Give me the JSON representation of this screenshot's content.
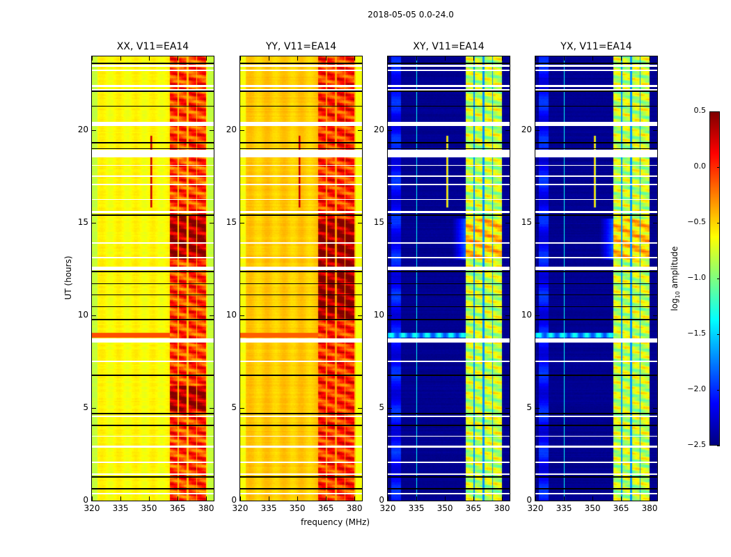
{
  "suptitle": "2018-05-05 0.0-24.0",
  "xlabel": "frequency (MHz)",
  "ylabel": "UT (hours)",
  "colorbar": {
    "label": "log10 amplitude",
    "label_main": "log",
    "label_sub": "10",
    "label_rest": " amplitude",
    "range": [
      -2.5,
      0.5
    ],
    "colormap": "jet",
    "ticks": [
      "0.5",
      "0.0",
      "−0.5",
      "−1.0",
      "−1.5",
      "−2.0",
      "−2.5"
    ],
    "tick_values": [
      0.5,
      0.0,
      -0.5,
      -1.0,
      -1.5,
      -2.0,
      -2.5
    ]
  },
  "chart_data": [
    {
      "type": "heatmap",
      "title": "XX, V11=EA14",
      "xlim": [
        320,
        384
      ],
      "ylim": [
        0,
        24
      ],
      "base": -0.62,
      "band": -0.05,
      "strong": 0.42,
      "strong_hours": [
        [
          13,
          15.4
        ],
        [
          4.8,
          6.2
        ]
      ],
      "dip": -0.45,
      "spike": 0.1,
      "row_anomaly": -0.1,
      "cross": false
    },
    {
      "type": "heatmap",
      "title": "YY, V11=EA14",
      "xlim": [
        320,
        384
      ],
      "ylim": [
        0,
        24
      ],
      "base": -0.47,
      "band": 0.0,
      "strong": 0.42,
      "strong_hours": [
        [
          9.8,
          15.2
        ]
      ],
      "dip": -0.35,
      "spike": 0.1,
      "row_anomaly": -0.15,
      "cross": false
    },
    {
      "type": "heatmap",
      "title": "XY, V11=EA14",
      "xlim": [
        320,
        384
      ],
      "ylim": [
        0,
        24
      ],
      "base": -2.45,
      "band": -0.8,
      "strong": 0.3,
      "strong_hours": [
        [
          13,
          15.2
        ]
      ],
      "dip": -1.7,
      "spike": -0.7,
      "row_anomaly": -1.6,
      "cross": true
    },
    {
      "type": "heatmap",
      "title": "YX, V11=EA14",
      "xlim": [
        320,
        384
      ],
      "ylim": [
        0,
        24
      ],
      "base": -2.45,
      "band": -0.8,
      "strong": 0.3,
      "strong_hours": [
        [
          13,
          15.2
        ]
      ],
      "dip": -1.7,
      "spike": -0.7,
      "row_anomaly": -1.6,
      "cross": true
    }
  ],
  "xticks": {
    "values": [
      320,
      335,
      350,
      365,
      380
    ],
    "labels": [
      "320",
      "335",
      "350",
      "365",
      "380"
    ]
  },
  "yticks": {
    "values": [
      0,
      5,
      10,
      15,
      20
    ],
    "labels": [
      "0",
      "5",
      "10",
      "15",
      "20"
    ]
  },
  "flags": {
    "white_hours": [
      [
        23.45,
        23.55
      ],
      [
        23.2,
        23.28
      ],
      [
        22.35,
        22.45
      ],
      [
        22.15,
        22.22
      ],
      [
        20.25,
        20.45
      ],
      [
        18.55,
        18.95
      ],
      [
        18.1,
        18.15
      ],
      [
        17.5,
        17.55
      ],
      [
        17.05,
        17.1
      ],
      [
        16.25,
        16.3
      ],
      [
        15.55,
        15.65
      ],
      [
        12.45,
        12.65
      ],
      [
        13.1,
        13.15
      ],
      [
        13.9,
        13.95
      ],
      [
        8.55,
        8.75
      ],
      [
        7.5,
        7.55
      ],
      [
        4.52,
        4.6
      ],
      [
        3.45,
        3.5
      ],
      [
        2.85,
        2.97
      ],
      [
        2.05,
        2.1
      ],
      [
        1.4,
        1.45
      ],
      [
        0.35,
        0.4
      ]
    ],
    "black_hours": [
      [
        23.6,
        23.66
      ],
      [
        22.1,
        22.14
      ],
      [
        21.3,
        21.34
      ],
      [
        19.3,
        19.36
      ],
      [
        19.0,
        19.05
      ],
      [
        15.4,
        15.45
      ],
      [
        12.35,
        12.42
      ],
      [
        11.7,
        11.75
      ],
      [
        11.1,
        11.15
      ],
      [
        10.45,
        10.5
      ],
      [
        9.75,
        9.82
      ],
      [
        6.75,
        6.8
      ],
      [
        4.68,
        4.75
      ],
      [
        4.05,
        4.1
      ],
      [
        1.25,
        1.3
      ],
      [
        0.62,
        0.66
      ]
    ]
  }
}
